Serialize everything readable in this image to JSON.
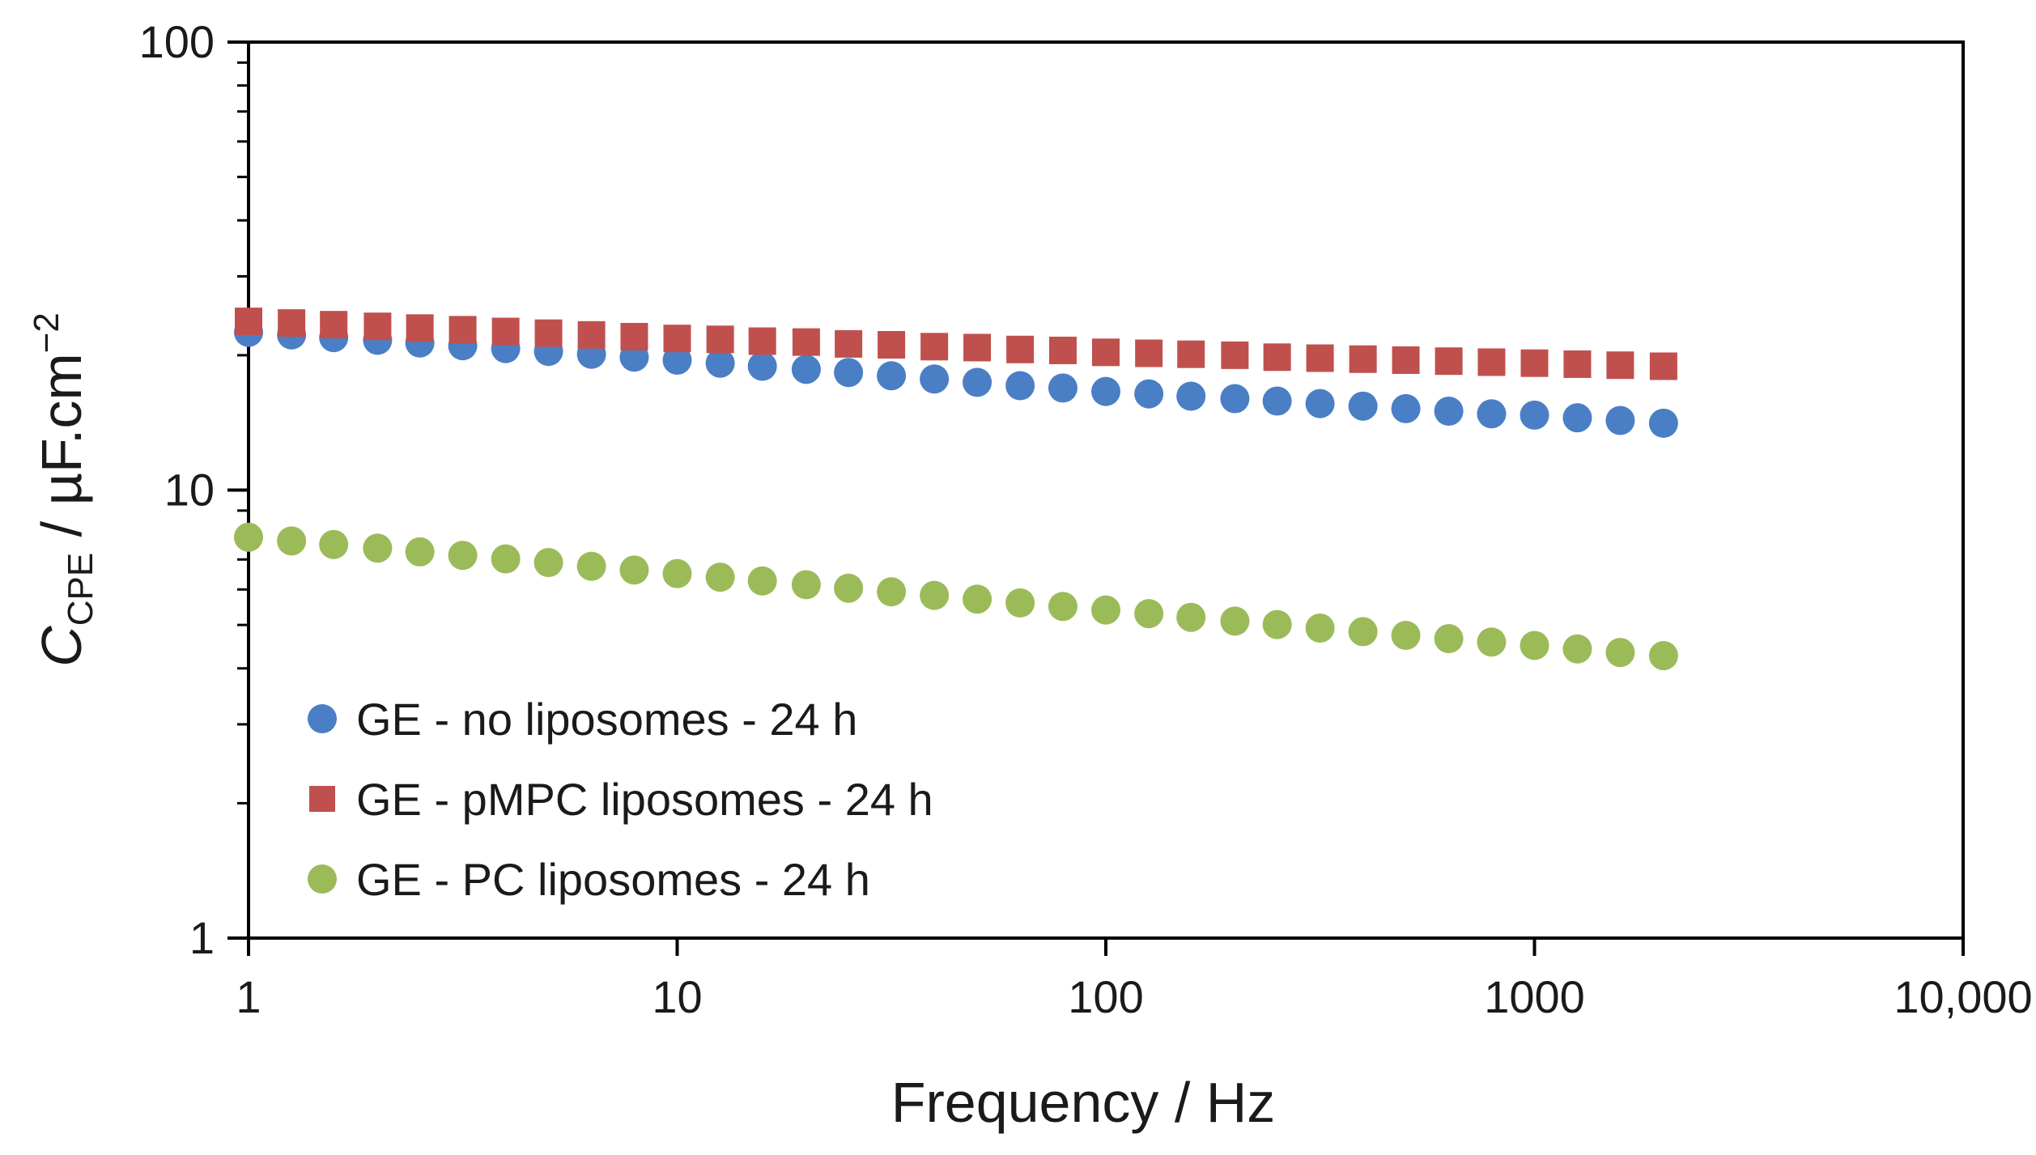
{
  "chart_data": {
    "type": "scatter",
    "x_scale": "log",
    "y_scale": "log",
    "xlim": [
      1,
      10000
    ],
    "ylim": [
      1,
      100
    ],
    "xlabel": "Frequency / Hz",
    "ylabel": {
      "main": "C",
      "subscript": "CPE",
      "unit": " / µF.cm",
      "superscript": "−2"
    },
    "x_ticks": [
      {
        "value": 1,
        "label": "1"
      },
      {
        "value": 10,
        "label": "10"
      },
      {
        "value": 100,
        "label": "100"
      },
      {
        "value": 1000,
        "label": "1000"
      },
      {
        "value": 10000,
        "label": "10,000"
      }
    ],
    "y_ticks": [
      {
        "value": 1,
        "label": "1"
      },
      {
        "value": 10,
        "label": "10"
      },
      {
        "value": 100,
        "label": "100"
      }
    ],
    "legend_position": "bottom-left",
    "x": [
      1,
      1.26,
      1.58,
      2,
      2.51,
      3.16,
      3.98,
      5.01,
      6.31,
      7.94,
      10,
      12.6,
      15.8,
      20,
      25.1,
      31.6,
      39.8,
      50.1,
      63.1,
      79.4,
      100,
      126,
      158,
      200,
      251,
      316,
      398,
      501,
      631,
      794,
      1000,
      1259,
      1585,
      2000
    ],
    "series": [
      {
        "name": "GE - no liposomes - 24 h",
        "marker": "circle",
        "color": "#4a7fc5",
        "values": [
          22.5,
          22.2,
          21.9,
          21.6,
          21.3,
          21.0,
          20.7,
          20.4,
          20.1,
          19.8,
          19.5,
          19.2,
          18.9,
          18.6,
          18.3,
          18.0,
          17.7,
          17.4,
          17.1,
          16.9,
          16.6,
          16.4,
          16.2,
          16.0,
          15.8,
          15.6,
          15.4,
          15.2,
          15.0,
          14.8,
          14.7,
          14.5,
          14.3,
          14.1
        ]
      },
      {
        "name": "GE - pMPC liposomes - 24 h",
        "marker": "square",
        "color": "#c0504d",
        "values": [
          23.8,
          23.6,
          23.4,
          23.2,
          23.0,
          22.8,
          22.6,
          22.4,
          22.2,
          22.0,
          21.8,
          21.7,
          21.5,
          21.4,
          21.2,
          21.1,
          20.9,
          20.8,
          20.6,
          20.5,
          20.3,
          20.2,
          20.1,
          20.0,
          19.8,
          19.7,
          19.6,
          19.5,
          19.4,
          19.3,
          19.2,
          19.1,
          19.0,
          18.9
        ]
      },
      {
        "name": "GE - PC liposomes - 24 h",
        "marker": "circle",
        "color": "#9bbb59",
        "values": [
          7.85,
          7.7,
          7.56,
          7.42,
          7.28,
          7.15,
          7.02,
          6.89,
          6.76,
          6.63,
          6.51,
          6.39,
          6.27,
          6.15,
          6.04,
          5.93,
          5.82,
          5.71,
          5.6,
          5.5,
          5.4,
          5.3,
          5.2,
          5.1,
          5.01,
          4.92,
          4.83,
          4.74,
          4.66,
          4.58,
          4.5,
          4.42,
          4.34,
          4.27
        ]
      }
    ]
  }
}
